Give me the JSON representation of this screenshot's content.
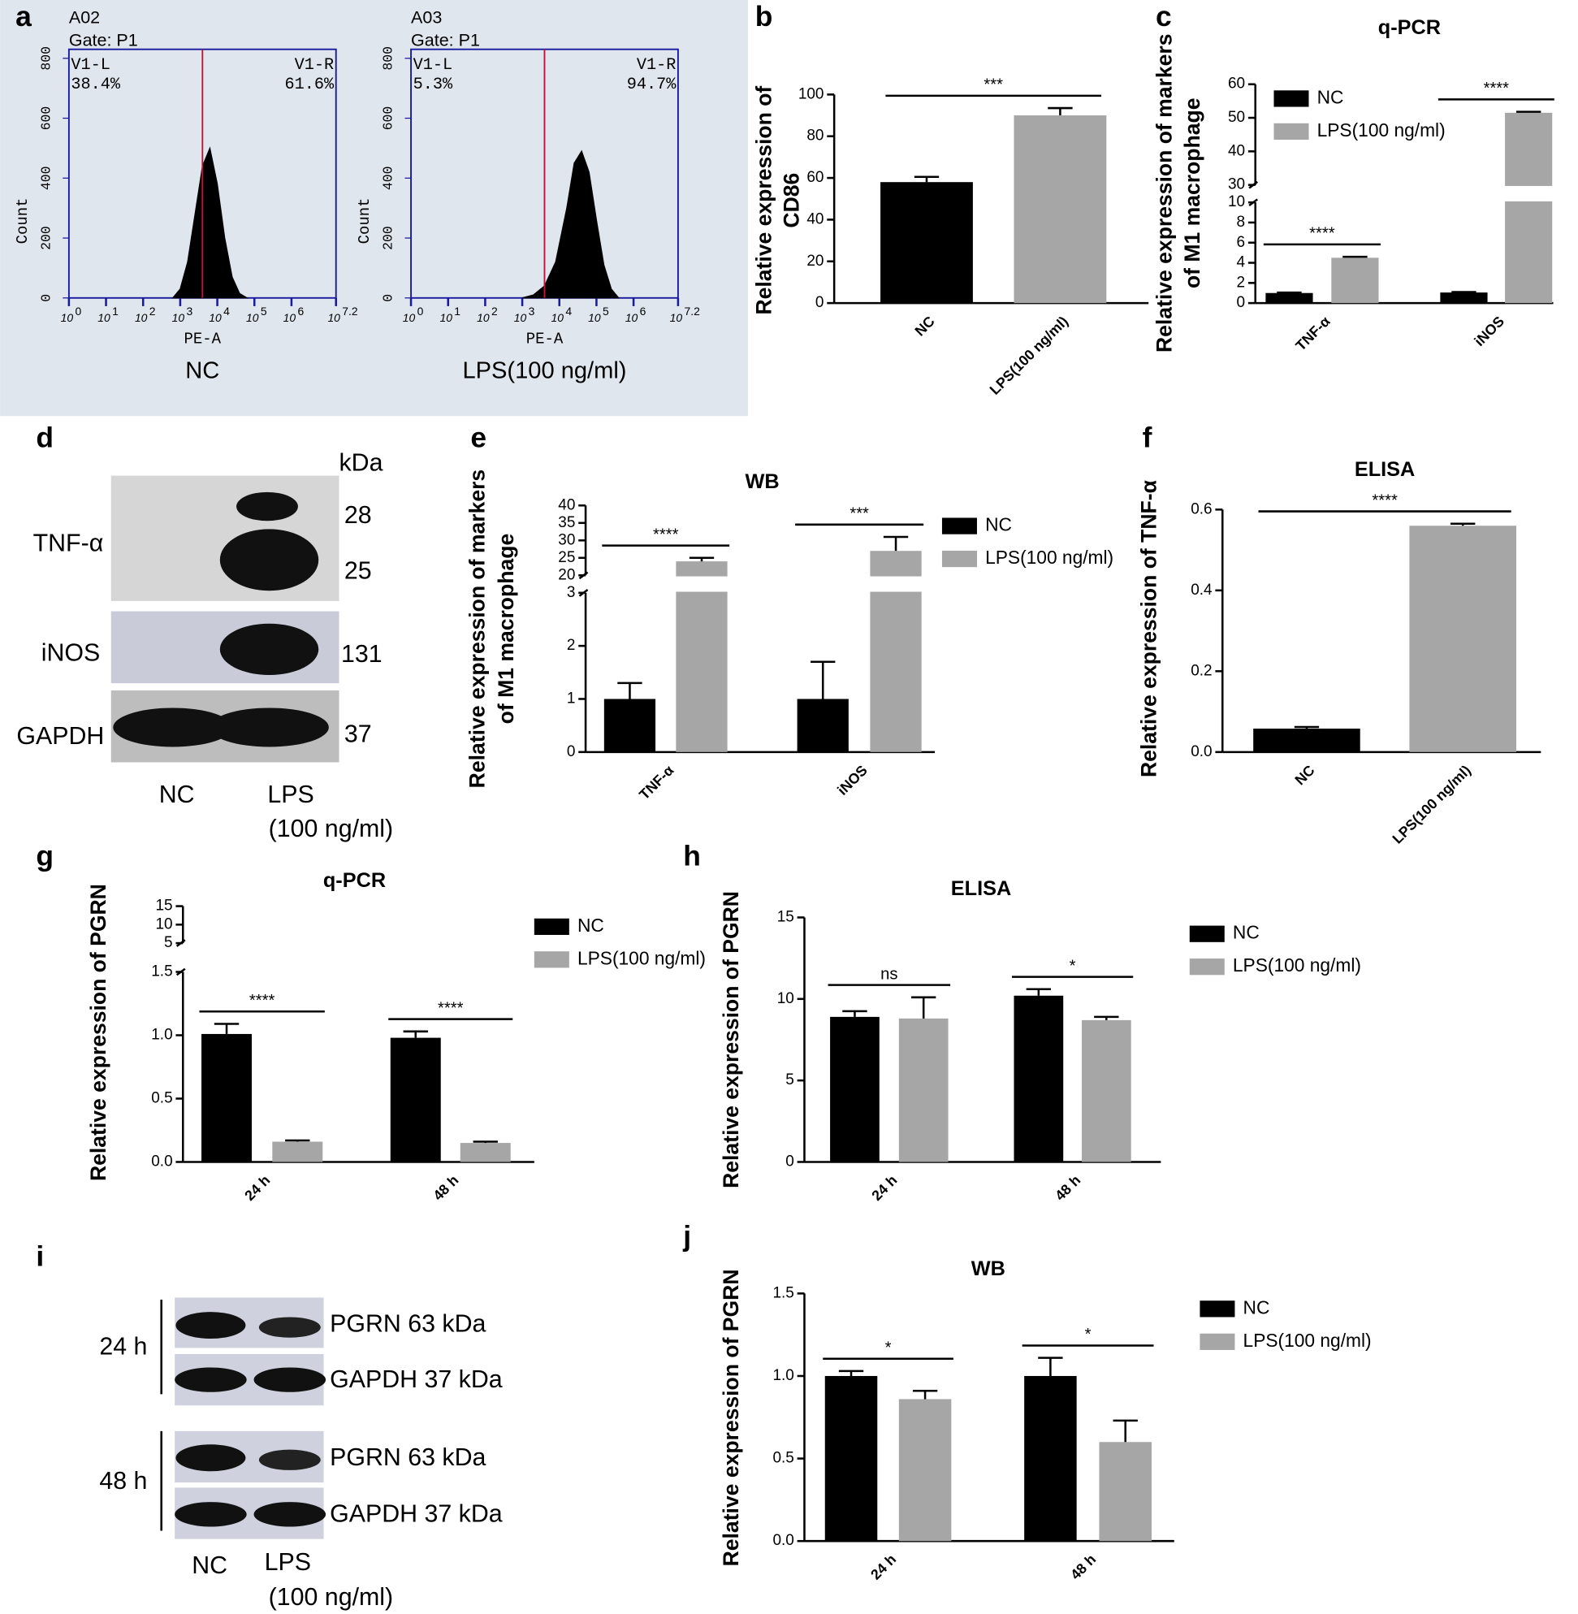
{
  "chart_data": [
    {
      "type": "area",
      "panel": "a",
      "sample": "A02",
      "gate": "Gate: P1",
      "xlabel": "PE-A",
      "ylabel": "Count",
      "caption": "NC",
      "color": "#000000",
      "gate_color": "#c0143c",
      "gates": [
        {
          "name": "V1-L",
          "label": "38.4%"
        },
        {
          "name": "V1-R",
          "label": "61.6%"
        }
      ],
      "gate_x": 3.6,
      "x": [
        2.8,
        3.0,
        3.2,
        3.4,
        3.6,
        3.8,
        4.0,
        4.2,
        4.4,
        4.6,
        4.8
      ],
      "values": [
        0,
        30,
        120,
        280,
        440,
        500,
        380,
        200,
        70,
        15,
        0
      ],
      "xlim": [
        0,
        7.2
      ],
      "xticks": [
        {
          "value": 0,
          "label": "10",
          "sup": "0"
        },
        {
          "value": 1,
          "label": "10",
          "sup": "1"
        },
        {
          "value": 2,
          "label": "10",
          "sup": "2"
        },
        {
          "value": 3,
          "label": "10",
          "sup": "3"
        },
        {
          "value": 4,
          "label": "10",
          "sup": "4"
        },
        {
          "value": 5,
          "label": "10",
          "sup": "5"
        },
        {
          "value": 6,
          "label": "10",
          "sup": "6"
        },
        {
          "value": 7.2,
          "label": "10",
          "sup": "7.2"
        }
      ],
      "ylim": [
        0,
        830
      ],
      "yticks": [
        0,
        200,
        400,
        600,
        800
      ]
    },
    {
      "type": "area",
      "sample": "A03",
      "gate": "Gate: P1",
      "xlabel": "PE-A",
      "ylabel": "Count",
      "caption": "LPS(100 ng/ml)",
      "color": "#000000",
      "gate_color": "#c0143c",
      "gates": [
        {
          "name": "V1-L",
          "label": "5.3%"
        },
        {
          "name": "V1-R",
          "label": "94.7%"
        }
      ],
      "gate_x": 3.6,
      "x": [
        3.0,
        3.3,
        3.6,
        3.9,
        4.2,
        4.4,
        4.6,
        4.8,
        5.0,
        5.2,
        5.4,
        5.6
      ],
      "values": [
        0,
        10,
        40,
        120,
        300,
        450,
        490,
        420,
        260,
        110,
        30,
        0
      ],
      "xlim": [
        0,
        7.2
      ],
      "xticks": [
        {
          "value": 0,
          "label": "10",
          "sup": "0"
        },
        {
          "value": 1,
          "label": "10",
          "sup": "1"
        },
        {
          "value": 2,
          "label": "10",
          "sup": "2"
        },
        {
          "value": 3,
          "label": "10",
          "sup": "3"
        },
        {
          "value": 4,
          "label": "10",
          "sup": "4"
        },
        {
          "value": 5,
          "label": "10",
          "sup": "5"
        },
        {
          "value": 6,
          "label": "10",
          "sup": "6"
        },
        {
          "value": 7.2,
          "label": "10",
          "sup": "7.2"
        }
      ],
      "ylim": [
        0,
        830
      ],
      "yticks": [
        0,
        200,
        400,
        600,
        800
      ]
    },
    {
      "type": "bar",
      "panel": "b",
      "ylabel": [
        "Relative expression of",
        "CD86"
      ],
      "categories": [
        "NC",
        "LPS(100 ng/ml)"
      ],
      "values": [
        58,
        90
      ],
      "errors": [
        2.5,
        3.5
      ],
      "colors": [
        "#000000",
        "#a6a6a6"
      ],
      "significance": "***",
      "ylim": [
        0,
        100
      ],
      "yticks": [
        0,
        20,
        40,
        60,
        80,
        100
      ]
    },
    {
      "type": "bar",
      "panel": "c",
      "title": "q-PCR",
      "ylabel": [
        "Relative expression of markers",
        "of M1 macrophage"
      ],
      "categories": [
        "TNF-α",
        "iNOS"
      ],
      "series": [
        {
          "name": "NC",
          "color": "#000000",
          "values": [
            1,
            1.05
          ],
          "errors": [
            0.05,
            0.05
          ]
        },
        {
          "name": "LPS(100 ng/ml)",
          "color": "#a6a6a6",
          "values": [
            4.5,
            51.5
          ],
          "errors": [
            0.1,
            0.3
          ]
        }
      ],
      "significance": [
        "****",
        "****"
      ],
      "ylim": [
        0,
        60
      ],
      "axis_break": [
        10,
        30
      ],
      "yticks": [
        0,
        2,
        4,
        6,
        8,
        10,
        30,
        40,
        50,
        60
      ]
    },
    {
      "type": "blot",
      "panel": "d",
      "unit": "kDa",
      "rows": [
        {
          "label": "TNF-α",
          "bands": [
            "28",
            "25"
          ]
        },
        {
          "label": "iNOS",
          "bands": [
            "131"
          ]
        },
        {
          "label": "GAPDH",
          "bands": [
            "37"
          ]
        }
      ],
      "lanes": [
        [
          "NC"
        ],
        [
          "LPS",
          "(100 ng/ml)"
        ]
      ]
    },
    {
      "type": "bar",
      "panel": "e",
      "title": "WB",
      "ylabel": [
        "Relative expression of markers",
        "of M1  macrophage"
      ],
      "categories": [
        "TNF-α",
        "iNOS"
      ],
      "series": [
        {
          "name": "NC",
          "color": "#000000",
          "values": [
            1,
            1
          ],
          "errors": [
            0.3,
            0.7
          ]
        },
        {
          "name": "LPS(100 ng/ml)",
          "color": "#a6a6a6",
          "values": [
            24,
            27
          ],
          "errors": [
            1,
            4
          ]
        }
      ],
      "significance": [
        "****",
        "***"
      ],
      "ylim": [
        0,
        40
      ],
      "axis_break": [
        3,
        20
      ],
      "yticks": [
        0,
        1,
        2,
        3,
        20,
        25,
        30,
        35,
        40
      ]
    },
    {
      "type": "bar",
      "panel": "f",
      "title": "ELISA",
      "ylabel": [
        "Relative expression of TNF-α"
      ],
      "categories": [
        "NC",
        "LPS(100 ng/ml)"
      ],
      "values": [
        0.058,
        0.56
      ],
      "errors": [
        0.004,
        0.005
      ],
      "colors": [
        "#000000",
        "#a6a6a6"
      ],
      "significance": "****",
      "ylim": [
        0,
        0.6
      ],
      "yticks": [
        {
          "value": 0,
          "label": "0.0"
        },
        0.2,
        0.4,
        0.6
      ]
    },
    {
      "type": "bar",
      "panel": "g",
      "title": "q-PCR",
      "ylabel": [
        "Relative expression of PGRN"
      ],
      "categories": [
        "24 h",
        "48 h"
      ],
      "series": [
        {
          "name": "NC",
          "color": "#000000",
          "values": [
            1.01,
            0.98
          ],
          "errors": [
            0.08,
            0.05
          ]
        },
        {
          "name": "LPS(100 ng/ml)",
          "color": "#a6a6a6",
          "values": [
            0.16,
            0.15
          ],
          "errors": [
            0.01,
            0.01
          ]
        }
      ],
      "significance": [
        "****",
        "****"
      ],
      "ylim": [
        0,
        15
      ],
      "axis_break": [
        1.5,
        5
      ],
      "yticks": [
        {
          "value": 0,
          "label": "0.0"
        },
        0.5,
        {
          "value": 1,
          "label": "1.0"
        },
        1.5,
        5,
        10,
        15
      ]
    },
    {
      "type": "bar",
      "panel": "h",
      "title": "ELISA",
      "ylabel": [
        "Relative expression of PGRN"
      ],
      "categories": [
        "24 h",
        "48 h"
      ],
      "series": [
        {
          "name": "NC",
          "color": "#000000",
          "values": [
            8.9,
            10.2
          ],
          "errors": [
            0.35,
            0.4
          ]
        },
        {
          "name": "LPS(100 ng/ml)",
          "color": "#a6a6a6",
          "values": [
            8.8,
            8.7
          ],
          "errors": [
            1.3,
            0.2
          ]
        }
      ],
      "significance": [
        "ns",
        "*"
      ],
      "ylim": [
        0,
        15
      ],
      "yticks": [
        0,
        5,
        10,
        15
      ]
    },
    {
      "type": "blot",
      "panel": "i",
      "groups": [
        {
          "label": "24 h",
          "rows": [
            "PGRN 63 kDa",
            "GAPDH 37 kDa"
          ]
        },
        {
          "label": "48 h",
          "rows": [
            "PGRN 63 kDa",
            "GAPDH 37 kDa"
          ]
        }
      ],
      "lanes": [
        [
          "NC"
        ],
        [
          "LPS",
          "(100 ng/ml)"
        ]
      ]
    },
    {
      "type": "bar",
      "panel": "j",
      "title": "WB",
      "ylabel": [
        "Relative expression of PGRN"
      ],
      "categories": [
        "24 h",
        "48 h"
      ],
      "series": [
        {
          "name": "NC",
          "color": "#000000",
          "values": [
            1.0,
            1.0
          ],
          "errors": [
            0.03,
            0.11
          ]
        },
        {
          "name": "LPS(100 ng/ml)",
          "color": "#a6a6a6",
          "values": [
            0.86,
            0.6
          ],
          "errors": [
            0.05,
            0.13
          ]
        }
      ],
      "significance": [
        "*",
        "*"
      ],
      "ylim": [
        0,
        1.5
      ],
      "yticks": [
        {
          "value": 0,
          "label": "0.0"
        },
        0.5,
        {
          "value": 1,
          "label": "1.0"
        },
        1.5
      ]
    }
  ]
}
